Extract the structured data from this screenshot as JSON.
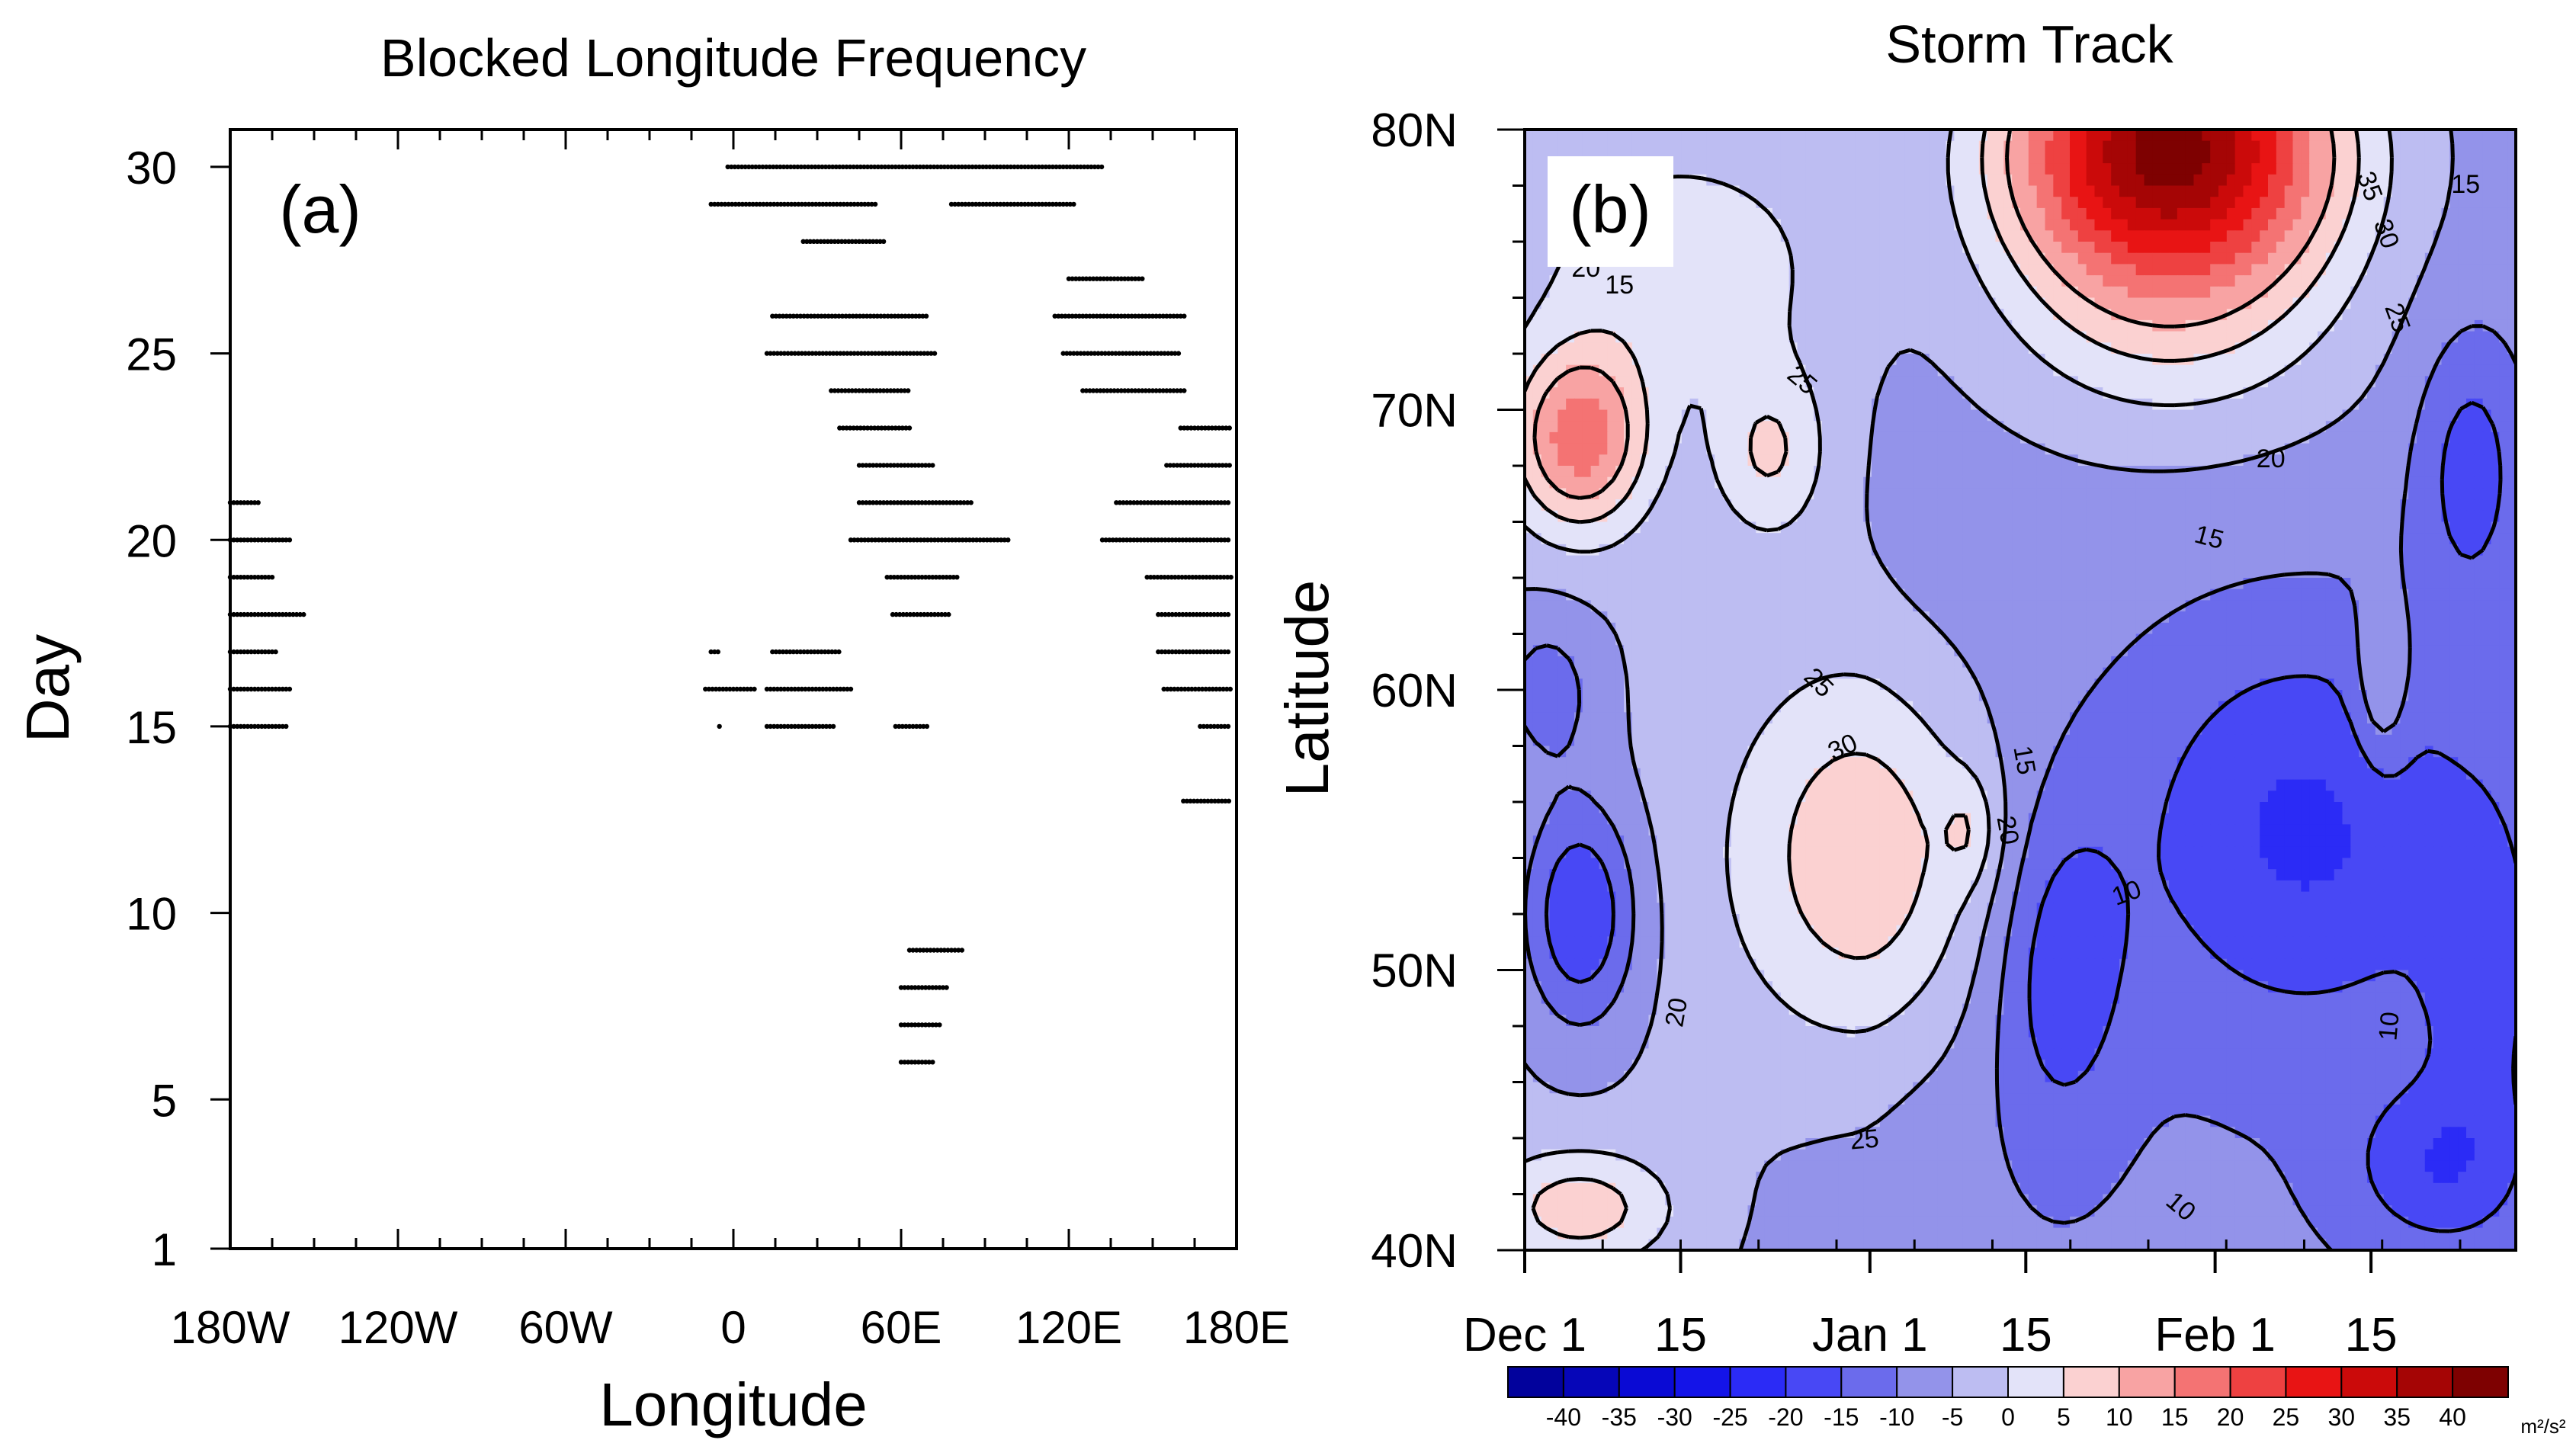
{
  "chart_data": [
    {
      "type": "scatter",
      "panel_label": "(a)",
      "title": "Blocked Longitude Frequency",
      "xlabel": "Longitude",
      "ylabel": "Day",
      "xlim": [
        -180,
        180
      ],
      "ylim": [
        1,
        31
      ],
      "x_ticks": [
        {
          "value": -180,
          "label": "180W"
        },
        {
          "value": -120,
          "label": "120W"
        },
        {
          "value": -60,
          "label": "60W"
        },
        {
          "value": 0,
          "label": "0"
        },
        {
          "value": 60,
          "label": "60E"
        },
        {
          "value": 120,
          "label": "120E"
        },
        {
          "value": 180,
          "label": "180E"
        }
      ],
      "y_ticks": [
        {
          "value": 1,
          "label": "1"
        },
        {
          "value": 5,
          "label": "5"
        },
        {
          "value": 10,
          "label": "10"
        },
        {
          "value": 15,
          "label": "15"
        },
        {
          "value": 20,
          "label": "20"
        },
        {
          "value": 25,
          "label": "25"
        },
        {
          "value": 30,
          "label": "30"
        }
      ],
      "series_note": "Each run is a blocked longitude range [start, end] on a given day (black dots every 1.25 degrees).",
      "blocked_segments": [
        {
          "day": 30,
          "lon": [
            -2,
            132
          ]
        },
        {
          "day": 29,
          "lon": [
            -8,
            51
          ]
        },
        {
          "day": 29,
          "lon": [
            78,
            122
          ]
        },
        {
          "day": 28,
          "lon": [
            25,
            54
          ]
        },
        {
          "day": 27,
          "lon": [
            120,
            147
          ]
        },
        {
          "day": 26,
          "lon": [
            14,
            69
          ]
        },
        {
          "day": 26,
          "lon": [
            115,
            162
          ]
        },
        {
          "day": 25,
          "lon": [
            12,
            72
          ]
        },
        {
          "day": 25,
          "lon": [
            118,
            160
          ]
        },
        {
          "day": 24,
          "lon": [
            35,
            63
          ]
        },
        {
          "day": 24,
          "lon": [
            125,
            162
          ]
        },
        {
          "day": 23,
          "lon": [
            38,
            64
          ]
        },
        {
          "day": 23,
          "lon": [
            160,
            178
          ]
        },
        {
          "day": 22,
          "lon": [
            45,
            72
          ]
        },
        {
          "day": 22,
          "lon": [
            155,
            178
          ]
        },
        {
          "day": 21,
          "lon": [
            -180,
            -170
          ]
        },
        {
          "day": 21,
          "lon": [
            45,
            86
          ]
        },
        {
          "day": 21,
          "lon": [
            137,
            178
          ]
        },
        {
          "day": 20,
          "lon": [
            -180,
            -158
          ]
        },
        {
          "day": 20,
          "lon": [
            42,
            99
          ]
        },
        {
          "day": 20,
          "lon": [
            132,
            178
          ]
        },
        {
          "day": 19,
          "lon": [
            -180,
            -164
          ]
        },
        {
          "day": 19,
          "lon": [
            55,
            80
          ]
        },
        {
          "day": 19,
          "lon": [
            148,
            178
          ]
        },
        {
          "day": 18,
          "lon": [
            -180,
            -153
          ]
        },
        {
          "day": 18,
          "lon": [
            57,
            78
          ]
        },
        {
          "day": 18,
          "lon": [
            152,
            178
          ]
        },
        {
          "day": 17,
          "lon": [
            -180,
            -163
          ]
        },
        {
          "day": 17,
          "lon": [
            -8,
            -5
          ]
        },
        {
          "day": 17,
          "lon": [
            14,
            38
          ]
        },
        {
          "day": 17,
          "lon": [
            152,
            178
          ]
        },
        {
          "day": 16,
          "lon": [
            -180,
            -158
          ]
        },
        {
          "day": 16,
          "lon": [
            -10,
            8
          ]
        },
        {
          "day": 16,
          "lon": [
            12,
            42
          ]
        },
        {
          "day": 16,
          "lon": [
            154,
            178
          ]
        },
        {
          "day": 15,
          "lon": [
            -180,
            -160
          ]
        },
        {
          "day": 15,
          "lon": [
            -5,
            -5
          ]
        },
        {
          "day": 15,
          "lon": [
            12,
            36
          ]
        },
        {
          "day": 15,
          "lon": [
            58,
            70
          ]
        },
        {
          "day": 15,
          "lon": [
            167,
            178
          ]
        },
        {
          "day": 13,
          "lon": [
            161,
            178
          ]
        },
        {
          "day": 9,
          "lon": [
            63,
            82
          ]
        },
        {
          "day": 8,
          "lon": [
            60,
            77
          ]
        },
        {
          "day": 7,
          "lon": [
            60,
            74
          ]
        },
        {
          "day": 6,
          "lon": [
            60,
            72
          ]
        }
      ]
    },
    {
      "type": "heatmap",
      "panel_label": "(b)",
      "title": "Storm Track",
      "xlabel": "",
      "ylabel": "Latitude",
      "x_ticks": [
        "Dec 1",
        "15",
        "Jan 1",
        "15",
        "Feb 1",
        "15"
      ],
      "x_tick_days": [
        0,
        14,
        31,
        45,
        62,
        76
      ],
      "xlim_days": [
        0,
        89
      ],
      "y_ticks": [
        "40N",
        "50N",
        "60N",
        "70N",
        "80N"
      ],
      "y_tick_values": [
        40,
        50,
        60,
        70,
        80
      ],
      "ylim": [
        40,
        80
      ],
      "colorbar": {
        "unit_label": "m²/s²",
        "labels": [
          "-40",
          "-35",
          "-30",
          "-25",
          "-20",
          "-15",
          "-10",
          "-5",
          "0",
          "5",
          "10",
          "15",
          "20",
          "25",
          "30",
          "35",
          "40"
        ],
        "levels": [
          -40,
          -35,
          -30,
          -25,
          -20,
          -15,
          -10,
          -5,
          0,
          5,
          10,
          15,
          20,
          25,
          30,
          35,
          40
        ],
        "colors": [
          "#02029c",
          "#0606b8",
          "#0a0ad4",
          "#1414e8",
          "#2b2bf6",
          "#4848f5",
          "#6b6bec",
          "#9393ea",
          "#bdbdf2",
          "#e3e3f9",
          "#fbd1d1",
          "#f8a3a3",
          "#f47373",
          "#ee4141",
          "#e81414",
          "#cb0a0a",
          "#a50505",
          "#7e0101"
        ]
      },
      "contour_labels": [
        "15",
        "20",
        "25",
        "30",
        "35",
        "10"
      ],
      "features": [
        {
          "kind": "max",
          "center_day": 40,
          "center_lat": 54.9,
          "value": 13
        },
        {
          "kind": "max",
          "center_day": 6,
          "center_lat": 69,
          "value": 17
        },
        {
          "kind": "max",
          "center_day": 58,
          "center_lat": 79,
          "value": 40
        },
        {
          "kind": "min",
          "center_day": 5,
          "center_lat": 52,
          "value": -18
        },
        {
          "kind": "min",
          "center_day": 70,
          "center_lat": 55,
          "value": -18
        }
      ]
    }
  ]
}
